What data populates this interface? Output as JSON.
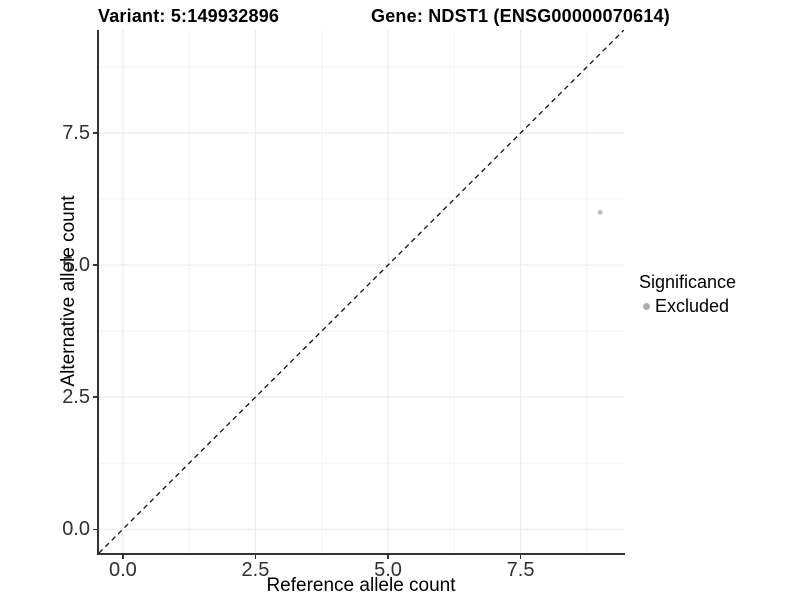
{
  "chart_data": {
    "type": "scatter",
    "title_variant": "Variant: 5:149932896",
    "title_gene": "Gene: NDST1 (ENSG00000070614)",
    "xlabel": "Reference allele count",
    "ylabel": "Alternative allele count",
    "xlim": [
      -0.45,
      9.45
    ],
    "ylim": [
      -0.45,
      9.45
    ],
    "x_ticks": [
      0,
      2.5,
      5,
      7.5
    ],
    "x_tick_labels": [
      "0.0",
      "2.5",
      "5.0",
      "7.5"
    ],
    "y_ticks": [
      0,
      2.5,
      5,
      7.5
    ],
    "y_tick_labels": [
      "0.0",
      "2.5",
      "5.0",
      "7.5"
    ],
    "x_minor_ticks": [
      1.25,
      3.75,
      6.25,
      8.75
    ],
    "y_minor_ticks": [
      1.25,
      3.75,
      6.25,
      8.75
    ],
    "grid": true,
    "points": [
      {
        "x": 9,
        "y": 6,
        "series": "Excluded",
        "color": "#c1c1c1",
        "radius": 2.5
      }
    ],
    "identity_line": {
      "slope": 1,
      "intercept": 0,
      "style": "dashed",
      "color": "#111111"
    },
    "legend": {
      "title": "Significance",
      "position": "right",
      "items": [
        {
          "label": "Excluded",
          "color": "#aeaeae"
        }
      ]
    },
    "colors": {
      "axis_line": "#333333",
      "tick_mark": "#333333",
      "grid_major": "#ebebeb",
      "grid_minor": "#f4f4f4",
      "background": "#ffffff"
    }
  }
}
